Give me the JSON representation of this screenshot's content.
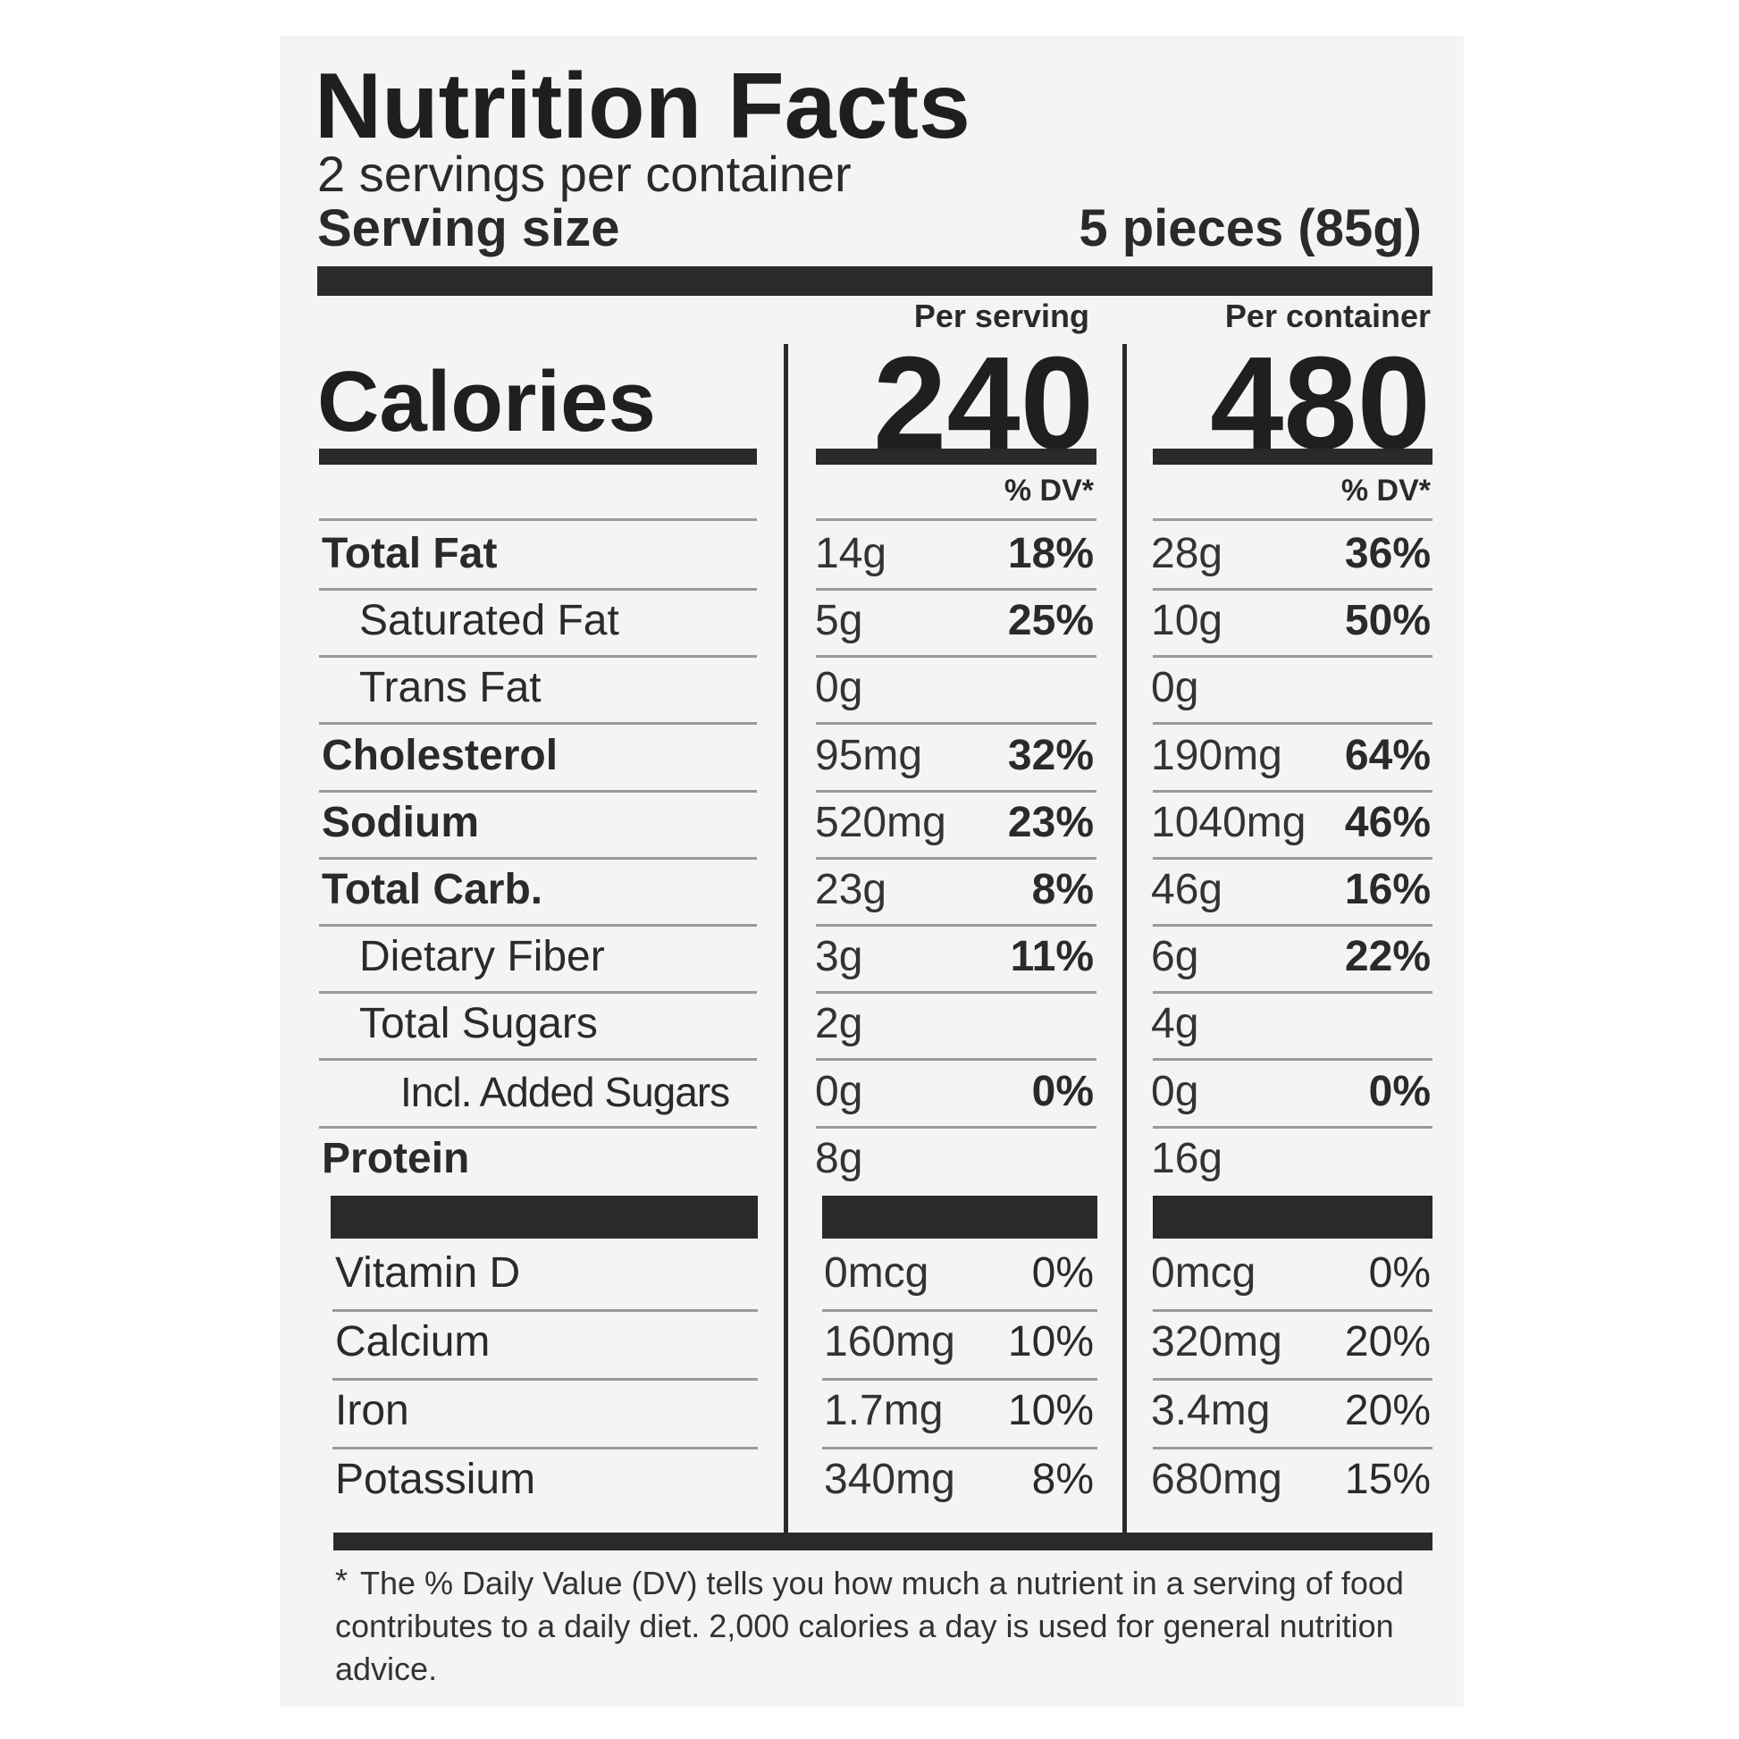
{
  "label": {
    "title": "Nutrition Facts",
    "servings_per_container": "2 servings per container",
    "serving_size_label": "Serving size",
    "serving_size_value": "5 pieces (85g)",
    "per_serving_header": "Per serving",
    "per_container_header": "Per container",
    "calories_label": "Calories",
    "calories_per_serving": "240",
    "calories_per_container": "480",
    "dv_header": "% DV*",
    "nutrients": [
      {
        "name": "Total Fat",
        "bold": true,
        "indent": 0,
        "serving_amount": "14g",
        "serving_dv": "18%",
        "container_amount": "28g",
        "container_dv": "36%"
      },
      {
        "name": "Saturated Fat",
        "bold": false,
        "indent": 1,
        "serving_amount": "5g",
        "serving_dv": "25%",
        "container_amount": "10g",
        "container_dv": "50%"
      },
      {
        "name": "Trans Fat",
        "bold": false,
        "indent": 1,
        "serving_amount": "0g",
        "serving_dv": "",
        "container_amount": "0g",
        "container_dv": ""
      },
      {
        "name": "Cholesterol",
        "bold": true,
        "indent": 0,
        "serving_amount": "95mg",
        "serving_dv": "32%",
        "container_amount": "190mg",
        "container_dv": "64%"
      },
      {
        "name": "Sodium",
        "bold": true,
        "indent": 0,
        "serving_amount": "520mg",
        "serving_dv": "23%",
        "container_amount": "1040mg",
        "container_dv": "46%"
      },
      {
        "name": "Total Carb.",
        "bold": true,
        "indent": 0,
        "serving_amount": "23g",
        "serving_dv": "8%",
        "container_amount": "46g",
        "container_dv": "16%"
      },
      {
        "name": "Dietary Fiber",
        "bold": false,
        "indent": 1,
        "serving_amount": "3g",
        "serving_dv": "11%",
        "container_amount": "6g",
        "container_dv": "22%"
      },
      {
        "name": "Total Sugars",
        "bold": false,
        "indent": 1,
        "serving_amount": "2g",
        "serving_dv": "",
        "container_amount": "4g",
        "container_dv": ""
      },
      {
        "name": "Incl. Added Sugars",
        "bold": false,
        "indent": 2,
        "serving_amount": "0g",
        "serving_dv": "0%",
        "container_amount": "0g",
        "container_dv": "0%"
      },
      {
        "name": "Protein",
        "bold": true,
        "indent": 0,
        "serving_amount": "8g",
        "serving_dv": "",
        "container_amount": "16g",
        "container_dv": ""
      }
    ],
    "vitamins": [
      {
        "name": "Vitamin D",
        "serving_amount": "0mcg",
        "serving_dv": "0%",
        "container_amount": "0mcg",
        "container_dv": "0%"
      },
      {
        "name": "Calcium",
        "serving_amount": "160mg",
        "serving_dv": "10%",
        "container_amount": "320mg",
        "container_dv": "20%"
      },
      {
        "name": "Iron",
        "serving_amount": "1.7mg",
        "serving_dv": "10%",
        "container_amount": "3.4mg",
        "container_dv": "20%"
      },
      {
        "name": "Potassium",
        "serving_amount": "340mg",
        "serving_dv": "8%",
        "container_amount": "680mg",
        "container_dv": "15%"
      }
    ],
    "footnote_star": "*",
    "footnote": "The % Daily Value (DV) tells you how much a nutrient in a serving of food contributes to a daily diet. 2,000 calories a day is used for general nutrition advice."
  }
}
